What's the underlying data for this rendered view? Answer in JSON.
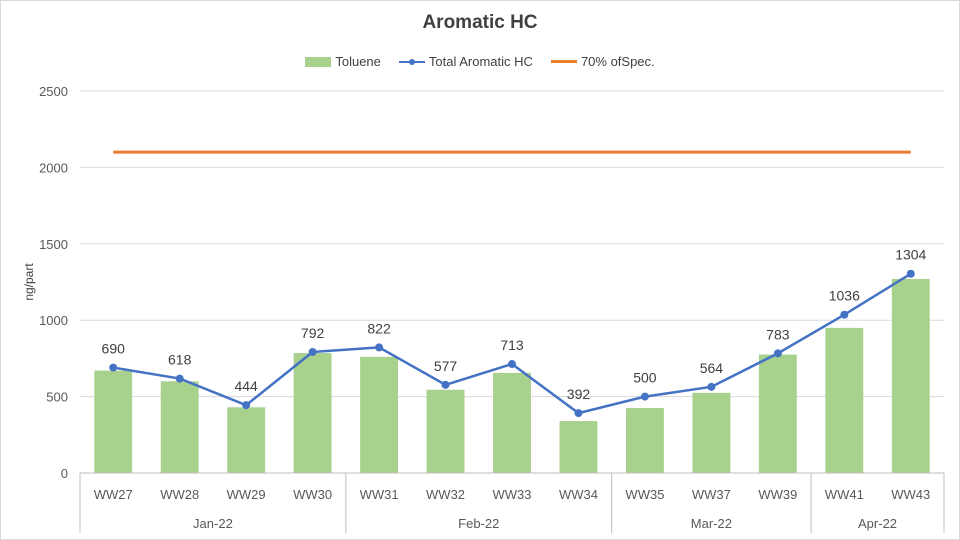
{
  "chart_data": {
    "type": "bar",
    "title": "Aromatic HC",
    "ylabel": "ng/part",
    "xlabel": "",
    "ylim": [
      0,
      2500
    ],
    "yticks": [
      0,
      500,
      1000,
      1500,
      2000,
      2500
    ],
    "grid": true,
    "legend_position": "top-center",
    "categories": [
      "WW27",
      "WW28",
      "WW29",
      "WW30",
      "WW31",
      "WW32",
      "WW33",
      "WW34",
      "WW35",
      "WW37",
      "WW39",
      "WW41",
      "WW43"
    ],
    "groups": [
      {
        "label": "Jan-22",
        "count": 4
      },
      {
        "label": "Feb-22",
        "count": 4
      },
      {
        "label": "Mar-22",
        "count": 3
      },
      {
        "label": "Apr-22",
        "count": 2
      }
    ],
    "series": [
      {
        "name": "Toluene",
        "type": "bar",
        "color": "#a9d18e",
        "values": [
          670,
          600,
          430,
          785,
          760,
          545,
          655,
          340,
          425,
          525,
          775,
          950,
          1270
        ]
      },
      {
        "name": "Total Aromatic HC",
        "type": "line",
        "color": "#4472c4",
        "values": [
          690,
          618,
          444,
          792,
          822,
          577,
          713,
          392,
          500,
          564,
          783,
          1036,
          1304
        ],
        "data_labels": [
          "690",
          "618",
          "444",
          "792",
          "822",
          "577",
          "713",
          "392",
          "500",
          "564",
          "783",
          "1036",
          "1304"
        ]
      },
      {
        "name": "70% ofSpec.",
        "type": "line",
        "color": "#ed7d31",
        "values": [
          2100,
          2100,
          2100,
          2100,
          2100,
          2100,
          2100,
          2100,
          2100,
          2100,
          2100,
          2100,
          2100
        ]
      }
    ]
  }
}
